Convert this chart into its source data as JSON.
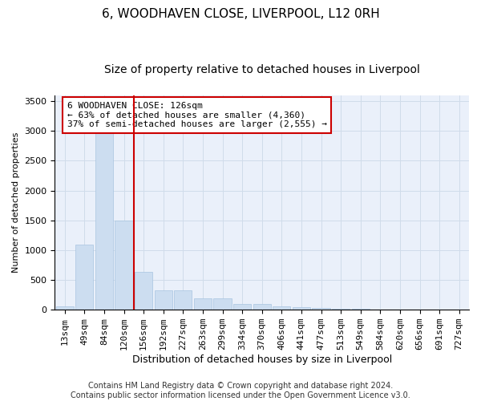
{
  "title": "6, WOODHAVEN CLOSE, LIVERPOOL, L12 0RH",
  "subtitle": "Size of property relative to detached houses in Liverpool",
  "xlabel": "Distribution of detached houses by size in Liverpool",
  "ylabel": "Number of detached properties",
  "bar_color": "#ccddf0",
  "bar_edge_color": "#a8c4e0",
  "grid_color": "#d0dcea",
  "background_color": "#eaf0fa",
  "categories": [
    "13sqm",
    "49sqm",
    "84sqm",
    "120sqm",
    "156sqm",
    "192sqm",
    "227sqm",
    "263sqm",
    "299sqm",
    "334sqm",
    "370sqm",
    "406sqm",
    "441sqm",
    "477sqm",
    "513sqm",
    "549sqm",
    "584sqm",
    "620sqm",
    "656sqm",
    "691sqm",
    "727sqm"
  ],
  "values": [
    60,
    1100,
    3050,
    1500,
    640,
    330,
    330,
    185,
    185,
    100,
    100,
    55,
    40,
    25,
    18,
    10,
    7,
    7,
    4,
    4,
    2
  ],
  "vline_x": 3.5,
  "vline_color": "#cc0000",
  "annotation_text": "6 WOODHAVEN CLOSE: 126sqm\n← 63% of detached houses are smaller (4,360)\n37% of semi-detached houses are larger (2,555) →",
  "annotation_box_facecolor": "white",
  "annotation_box_edgecolor": "#cc0000",
  "footer_text": "Contains HM Land Registry data © Crown copyright and database right 2024.\nContains public sector information licensed under the Open Government Licence v3.0.",
  "ylim": [
    0,
    3600
  ],
  "yticks": [
    0,
    500,
    1000,
    1500,
    2000,
    2500,
    3000,
    3500
  ],
  "title_fontsize": 11,
  "subtitle_fontsize": 10,
  "ylabel_fontsize": 8,
  "xlabel_fontsize": 9,
  "tick_fontsize": 8,
  "annotation_fontsize": 8,
  "footer_fontsize": 7
}
